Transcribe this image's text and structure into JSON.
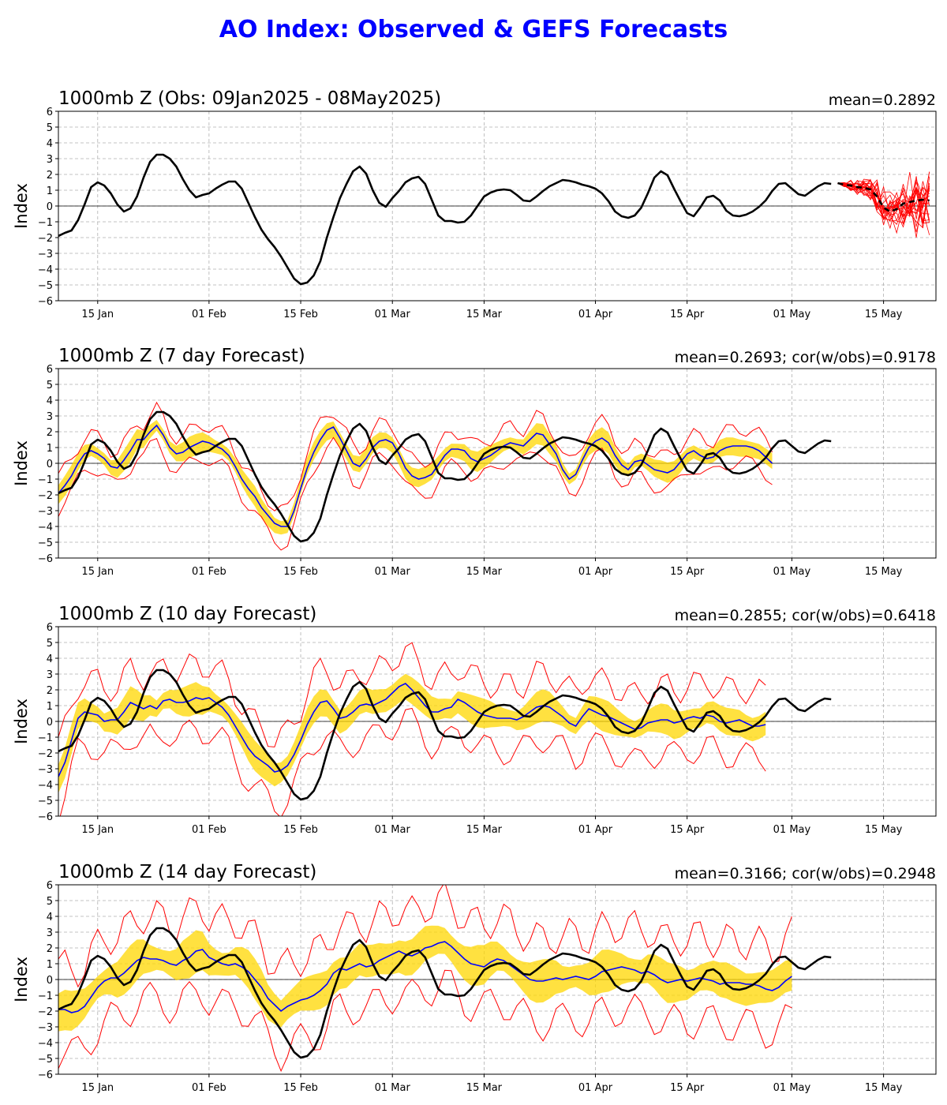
{
  "figure": {
    "title": "AO Index: Observed & GEFS Forecasts"
  },
  "colors": {
    "obs": "#000000",
    "mean": "#0000ff",
    "spread": "#ffd700",
    "extremes": "#ff0000",
    "title": "#0000ff",
    "members": "#ff0000"
  },
  "chart_data": [
    {
      "type": "line",
      "title": "1000mb Z (Obs: 09Jan2025 - 08May2025)",
      "stats": "mean=0.2892",
      "ylabel": "Index",
      "ylim": [
        -6,
        6
      ],
      "yticks": [
        -6,
        -5,
        -4,
        -3,
        -2,
        -1,
        0,
        1,
        2,
        3,
        4,
        5,
        6
      ],
      "xlim": [
        "2025-01-09",
        "2025-05-23"
      ],
      "xticks": [
        {
          "date": "2025-01-15",
          "label": "15 Jan"
        },
        {
          "date": "2025-02-01",
          "label": "01 Feb"
        },
        {
          "date": "2025-02-15",
          "label": "15 Feb"
        },
        {
          "date": "2025-03-01",
          "label": "01 Mar"
        },
        {
          "date": "2025-03-15",
          "label": "15 Mar"
        },
        {
          "date": "2025-04-01",
          "label": "01 Apr"
        },
        {
          "date": "2025-04-15",
          "label": "15 Apr"
        },
        {
          "date": "2025-05-01",
          "label": "01 May"
        },
        {
          "date": "2025-05-15",
          "label": "15 May"
        }
      ],
      "grid": true,
      "obs": {
        "start": "2025-01-09",
        "values": [
          -1.9,
          -1.7,
          -1.55,
          -0.9,
          0.1,
          1.2,
          1.5,
          1.3,
          0.8,
          0.1,
          -0.35,
          -0.15,
          0.6,
          1.8,
          2.8,
          3.25,
          3.25,
          3.0,
          2.5,
          1.7,
          1.0,
          0.55,
          0.7,
          0.8,
          1.1,
          1.35,
          1.55,
          1.55,
          1.1,
          0.2,
          -0.7,
          -1.5,
          -2.1,
          -2.6,
          -3.2,
          -3.9,
          -4.6,
          -4.95,
          -4.85,
          -4.4,
          -3.5,
          -2.0,
          -0.7,
          0.5,
          1.4,
          2.2,
          2.5,
          2.05,
          1.0,
          0.2,
          -0.05,
          0.5,
          0.95,
          1.5,
          1.75,
          1.85,
          1.4,
          0.4,
          -0.6,
          -0.95,
          -0.95,
          -1.05,
          -1.0,
          -0.6,
          0.0,
          0.6,
          0.85,
          1.0,
          1.05,
          1.0,
          0.7,
          0.35,
          0.3,
          0.6,
          0.95,
          1.25,
          1.45,
          1.65,
          1.6,
          1.5,
          1.35,
          1.25,
          1.1,
          0.8,
          0.3,
          -0.35,
          -0.65,
          -0.75,
          -0.6,
          -0.1,
          0.8,
          1.8,
          2.2,
          1.95,
          1.1,
          0.3,
          -0.45,
          -0.65,
          -0.1,
          0.55,
          0.65,
          0.35,
          -0.3,
          -0.6,
          -0.65,
          -0.55,
          -0.35,
          -0.05,
          0.35,
          0.95,
          1.4,
          1.45,
          1.1,
          0.75,
          0.65,
          0.95,
          1.25,
          1.45,
          1.4
        ]
      },
      "ensemble_forecast": {
        "start": "2025-05-08",
        "mean": [
          1.45,
          1.35,
          1.3,
          1.2,
          1.15,
          1.05,
          0.6,
          -0.1,
          -0.35,
          -0.2,
          0.15,
          0.25,
          0.35,
          0.4,
          0.35
        ]
      }
    },
    {
      "type": "line",
      "title": "1000mb Z (7 day Forecast)",
      "stats": "mean=0.2693; cor(w/obs)=0.9178",
      "ylabel": "Index",
      "ylim": [
        -6,
        6
      ],
      "yticks": [
        -6,
        -5,
        -4,
        -3,
        -2,
        -1,
        0,
        1,
        2,
        3,
        4,
        5,
        6
      ],
      "xlim": [
        "2025-01-09",
        "2025-05-23"
      ],
      "xticks": [
        {
          "date": "2025-01-15",
          "label": "15 Jan"
        },
        {
          "date": "2025-02-01",
          "label": "01 Feb"
        },
        {
          "date": "2025-02-15",
          "label": "15 Feb"
        },
        {
          "date": "2025-03-01",
          "label": "01 Mar"
        },
        {
          "date": "2025-03-15",
          "label": "15 Mar"
        },
        {
          "date": "2025-04-01",
          "label": "01 Apr"
        },
        {
          "date": "2025-04-15",
          "label": "15 Apr"
        },
        {
          "date": "2025-05-01",
          "label": "01 May"
        },
        {
          "date": "2025-05-15",
          "label": "15 May"
        }
      ],
      "grid": true,
      "forecast": {
        "start": "2025-01-09",
        "mean": [
          -1.9,
          -1.4,
          -0.8,
          0.0,
          0.6,
          0.8,
          0.6,
          0.3,
          -0.2,
          -0.3,
          0.2,
          0.8,
          1.5,
          1.5,
          2.0,
          2.4,
          1.8,
          1.0,
          0.6,
          0.7,
          1.0,
          1.2,
          1.4,
          1.3,
          1.1,
          0.9,
          0.5,
          -0.2,
          -1.0,
          -1.6,
          -2.1,
          -2.8,
          -3.3,
          -3.8,
          -4.0,
          -4.0,
          -3.0,
          -1.6,
          -0.3,
          0.7,
          1.5,
          2.1,
          2.3,
          1.6,
          0.8,
          0.0,
          -0.2,
          0.3,
          1.0,
          1.4,
          1.5,
          1.3,
          0.6,
          -0.3,
          -0.8,
          -1.0,
          -0.9,
          -0.7,
          -0.1,
          0.5,
          0.9,
          0.9,
          0.8,
          0.3,
          0.1,
          0.3,
          0.5,
          0.8,
          1.1,
          1.3,
          1.2,
          1.1,
          1.5,
          1.9,
          1.8,
          1.2,
          0.6,
          -0.4,
          -1.0,
          -0.7,
          0.2,
          1.0,
          1.4,
          1.6,
          1.3,
          0.5,
          -0.1,
          -0.4,
          0.1,
          0.2,
          -0.1,
          -0.4,
          -0.5,
          -0.6,
          -0.4,
          0.1,
          0.6,
          0.8,
          0.5,
          0.3,
          0.4,
          0.8,
          1.0,
          1.1,
          1.1,
          1.1,
          1.0,
          0.8,
          0.4,
          0.0
        ],
        "spread": 0.6,
        "extreme": 1.3
      }
    },
    {
      "type": "line",
      "title": "1000mb Z (10 day Forecast)",
      "stats": "mean=0.2855; cor(w/obs)=0.6418",
      "ylabel": "Index",
      "ylim": [
        -6,
        6
      ],
      "yticks": [
        -6,
        -5,
        -4,
        -3,
        -2,
        -1,
        0,
        1,
        2,
        3,
        4,
        5,
        6
      ],
      "xlim": [
        "2025-01-09",
        "2025-05-23"
      ],
      "xticks": [
        {
          "date": "2025-01-15",
          "label": "15 Jan"
        },
        {
          "date": "2025-02-01",
          "label": "01 Feb"
        },
        {
          "date": "2025-02-15",
          "label": "15 Feb"
        },
        {
          "date": "2025-03-01",
          "label": "01 Mar"
        },
        {
          "date": "2025-03-15",
          "label": "15 Mar"
        },
        {
          "date": "2025-04-01",
          "label": "01 Apr"
        },
        {
          "date": "2025-04-15",
          "label": "15 Apr"
        },
        {
          "date": "2025-05-01",
          "label": "01 May"
        },
        {
          "date": "2025-05-15",
          "label": "15 May"
        }
      ],
      "grid": true,
      "forecast": {
        "start": "2025-01-09",
        "mean": [
          -3.5,
          -2.6,
          -1.2,
          0.2,
          0.6,
          0.5,
          0.4,
          0.0,
          0.1,
          0.1,
          0.6,
          1.2,
          1.0,
          0.8,
          1.0,
          0.8,
          1.3,
          1.4,
          1.2,
          1.2,
          1.3,
          1.5,
          1.4,
          1.5,
          1.2,
          0.9,
          0.4,
          -0.3,
          -1.0,
          -1.7,
          -2.2,
          -2.5,
          -2.8,
          -3.2,
          -3.1,
          -2.8,
          -2.1,
          -1.2,
          -0.2,
          0.6,
          1.2,
          1.3,
          0.8,
          0.2,
          0.3,
          0.6,
          1.0,
          1.1,
          1.0,
          1.2,
          1.4,
          1.8,
          2.2,
          2.4,
          2.0,
          1.5,
          1.0,
          0.6,
          0.6,
          0.8,
          0.9,
          1.4,
          1.2,
          0.9,
          0.6,
          0.4,
          0.3,
          0.2,
          0.2,
          0.2,
          0.1,
          0.3,
          0.6,
          0.9,
          1.0,
          0.9,
          0.6,
          0.3,
          -0.1,
          -0.3,
          0.3,
          0.8,
          0.6,
          0.4,
          0.3,
          0.1,
          -0.1,
          -0.3,
          -0.5,
          -0.4,
          -0.1,
          0.0,
          0.1,
          0.1,
          -0.1,
          0.0,
          0.2,
          0.3,
          0.2,
          0.4,
          0.3,
          0.0,
          -0.1,
          0.0,
          0.1,
          -0.1,
          -0.3,
          -0.3,
          -0.2
        ],
        "spread": 0.9,
        "extreme": 2.6
      }
    },
    {
      "type": "line",
      "title": "1000mb Z (14 day Forecast)",
      "stats": "mean=0.3166; cor(w/obs)=0.2948",
      "ylabel": "Index",
      "ylim": [
        -6,
        6
      ],
      "yticks": [
        -6,
        -5,
        -4,
        -3,
        -2,
        -1,
        0,
        1,
        2,
        3,
        4,
        5,
        6
      ],
      "xlim": [
        "2025-01-09",
        "2025-05-23"
      ],
      "xticks": [
        {
          "date": "2025-01-15",
          "label": "15 Jan"
        },
        {
          "date": "2025-02-01",
          "label": "01 Feb"
        },
        {
          "date": "2025-02-15",
          "label": "15 Feb"
        },
        {
          "date": "2025-03-01",
          "label": "01 Mar"
        },
        {
          "date": "2025-03-15",
          "label": "15 Mar"
        },
        {
          "date": "2025-04-01",
          "label": "01 Apr"
        },
        {
          "date": "2025-04-15",
          "label": "15 Apr"
        },
        {
          "date": "2025-05-01",
          "label": "01 May"
        },
        {
          "date": "2025-05-15",
          "label": "15 May"
        }
      ],
      "grid": true,
      "forecast": {
        "start": "2025-01-09",
        "mean": [
          -1.9,
          -1.9,
          -2.1,
          -2.0,
          -1.7,
          -1.1,
          -0.5,
          -0.1,
          0.1,
          0.1,
          0.4,
          0.8,
          1.2,
          1.4,
          1.3,
          1.3,
          1.2,
          1.0,
          0.9,
          1.2,
          1.4,
          1.8,
          1.9,
          1.4,
          1.2,
          1.0,
          0.9,
          1.0,
          0.8,
          0.5,
          0.0,
          -0.5,
          -1.2,
          -1.6,
          -2.0,
          -1.7,
          -1.5,
          -1.3,
          -1.2,
          -1.0,
          -0.7,
          -0.3,
          0.4,
          0.7,
          0.6,
          0.8,
          1.0,
          0.8,
          0.9,
          1.2,
          1.4,
          1.6,
          1.8,
          1.6,
          1.5,
          1.7,
          2.0,
          2.1,
          2.3,
          2.4,
          2.1,
          1.7,
          1.3,
          1.0,
          0.9,
          0.8,
          1.1,
          1.3,
          1.2,
          0.9,
          0.6,
          0.3,
          0.0,
          -0.1,
          -0.1,
          0.0,
          0.1,
          0.0,
          0.1,
          0.2,
          0.1,
          0.0,
          0.2,
          0.5,
          0.6,
          0.7,
          0.8,
          0.7,
          0.6,
          0.4,
          0.5,
          0.3,
          0.0,
          -0.2,
          -0.1,
          0.0,
          -0.1,
          0.0,
          0.1,
          0.0,
          -0.1,
          -0.3,
          -0.2,
          -0.2,
          -0.2,
          -0.3,
          -0.3,
          -0.4,
          -0.6,
          -0.7,
          -0.5,
          -0.1,
          0.2
        ],
        "spread": 1.2,
        "extreme": 3.3
      }
    }
  ]
}
